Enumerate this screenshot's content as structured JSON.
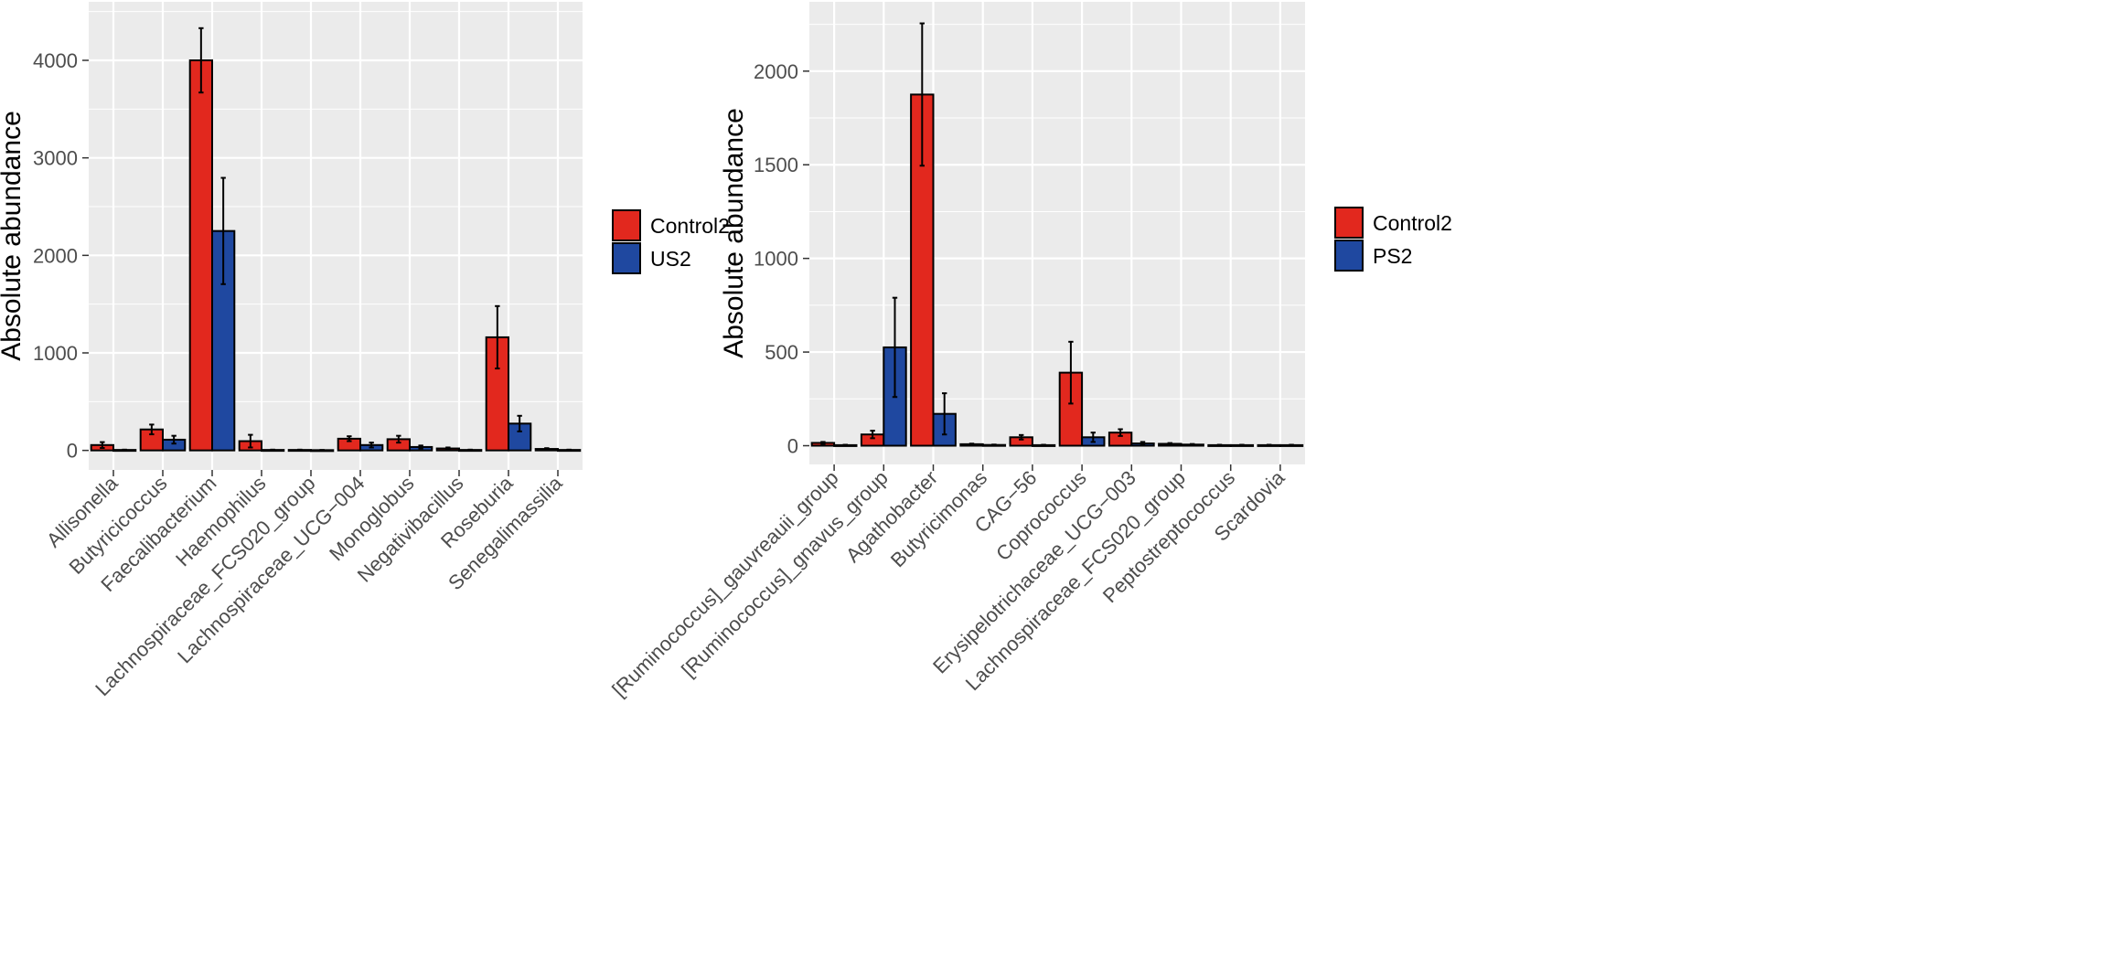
{
  "chart_data": [
    {
      "type": "bar",
      "title": "",
      "xlabel": "",
      "ylabel": "Absolute abundance",
      "ylim": [
        -200,
        4600
      ],
      "yticks": [
        0,
        1000,
        2000,
        3000,
        4000
      ],
      "grid": true,
      "legend_position": "right",
      "categories": [
        "Allisonella",
        "Butyricicoccus",
        "Faecalibacterium",
        "Haemophilus",
        "Lachnospiraceae_FCS020_group",
        "Lachnospiraceae_UCG−004",
        "Monoglobus",
        "Negativibacillus",
        "Roseburia",
        "Senegalimassilia"
      ],
      "series": [
        {
          "name": "Control2",
          "color": "#e2281e",
          "values": [
            55,
            215,
            4000,
            95,
            5,
            120,
            115,
            20,
            1160,
            15
          ],
          "error": [
            30,
            50,
            330,
            65,
            3,
            25,
            35,
            10,
            320,
            8
          ]
        },
        {
          "name": "US2",
          "color": "#1f48a0",
          "values": [
            5,
            110,
            2250,
            5,
            3,
            55,
            35,
            5,
            275,
            5
          ],
          "error": [
            3,
            40,
            545,
            3,
            2,
            25,
            15,
            3,
            80,
            3
          ]
        }
      ]
    },
    {
      "type": "bar",
      "title": "",
      "xlabel": "",
      "ylabel": "Absolute abundance",
      "ylim": [
        -100,
        2370
      ],
      "yticks": [
        0,
        500,
        1000,
        1500,
        2000
      ],
      "grid": true,
      "legend_position": "right",
      "categories": [
        "[Ruminococcus]_gauvreauii_group",
        "[Ruminococcus]_gnavus_group",
        "Agathobacter",
        "Butyricimonas",
        "CAG−56",
        "Coprococcus",
        "Erysipelotrichaceae_UCG−003",
        "Lachnospiraceae_FCS020_group",
        "Peptostreptococcus",
        "Scardovia"
      ],
      "series": [
        {
          "name": "Control2",
          "color": "#e2281e",
          "values": [
            15,
            60,
            1875,
            8,
            45,
            390,
            70,
            10,
            3,
            3
          ],
          "error": [
            5,
            20,
            380,
            3,
            12,
            165,
            18,
            4,
            2,
            2
          ]
        },
        {
          "name": "PS2",
          "color": "#1f48a0",
          "values": [
            3,
            525,
            170,
            4,
            3,
            45,
            12,
            6,
            3,
            3
          ],
          "error": [
            2,
            265,
            110,
            2,
            2,
            25,
            8,
            3,
            2,
            2
          ]
        }
      ]
    }
  ]
}
